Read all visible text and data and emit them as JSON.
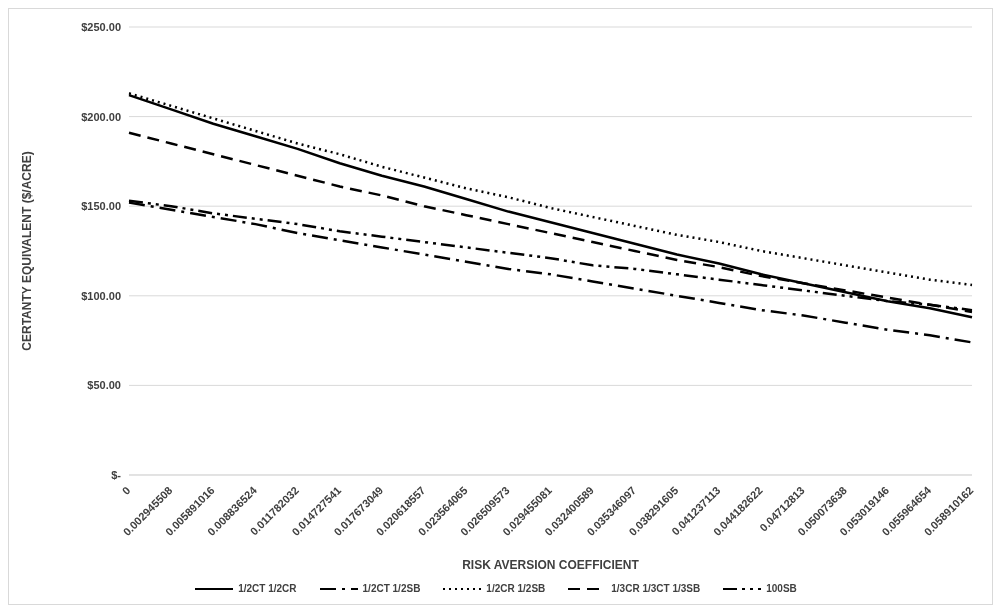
{
  "chart_data": {
    "type": "line",
    "xlabel": "RISK AVERSION COEFFICIENT",
    "ylabel": "CERTANTY EQUIVALENT ($/ACRE)",
    "categories": [
      "0",
      "0.002945508",
      "0.005891016",
      "0.008836524",
      "0.011782032",
      "0.014727541",
      "0.017673049",
      "0.020618557",
      "0.023564065",
      "0.026509573",
      "0.029455081",
      "0.032400589",
      "0.035346097",
      "0.038291605",
      "0.041237113",
      "0.044182622",
      "0.04712813",
      "0.050073638",
      "0.053019146",
      "0.055964654",
      "0.058910162"
    ],
    "series": [
      {
        "name": "1/2CT 1/2CR",
        "color": "#000000",
        "line_style": "solid",
        "values": [
          212,
          204,
          196,
          189,
          182,
          174,
          167,
          161,
          154,
          147,
          141,
          135,
          129,
          123,
          118,
          112,
          107,
          102,
          97,
          93,
          88
        ]
      },
      {
        "name": "1/2CT 1/2SB",
        "color": "#000000",
        "line_style": "dashdot",
        "values": [
          152,
          148,
          144,
          140,
          135,
          131,
          127,
          123,
          119,
          115,
          112,
          108,
          104,
          100,
          96,
          92,
          89,
          85,
          81,
          78,
          74
        ]
      },
      {
        "name": "1/2CR 1/2SB",
        "color": "#000000",
        "line_style": "dotted",
        "values": [
          213,
          206,
          199,
          192,
          185,
          179,
          172,
          166,
          160,
          155,
          149,
          144,
          139,
          134,
          130,
          125,
          121,
          117,
          113,
          109,
          106
        ]
      },
      {
        "name": "1/3CR 1/3CT 1/3SB",
        "color": "#000000",
        "line_style": "dashed",
        "values": [
          191,
          185,
          179,
          173,
          167,
          161,
          156,
          150,
          145,
          140,
          135,
          130,
          125,
          120,
          116,
          111,
          107,
          103,
          99,
          95,
          91
        ]
      },
      {
        "name": "100SB",
        "color": "#000000",
        "line_style": "dashdotdot",
        "values": [
          153,
          150,
          146,
          143,
          140,
          136,
          133,
          130,
          127,
          124,
          121,
          117,
          115,
          112,
          109,
          106,
          103,
          100,
          97,
          95,
          92
        ]
      }
    ],
    "ylim": [
      0,
      250
    ],
    "yticks": [
      {
        "value": 0,
        "label": "$-"
      },
      {
        "value": 50,
        "label": "$50.00"
      },
      {
        "value": 100,
        "label": "$100.00"
      },
      {
        "value": 150,
        "label": "$150.00"
      },
      {
        "value": 200,
        "label": "$200.00"
      },
      {
        "value": 250,
        "label": "$250.00"
      }
    ],
    "grid": "y",
    "legend": "bottom",
    "marker": "none"
  }
}
